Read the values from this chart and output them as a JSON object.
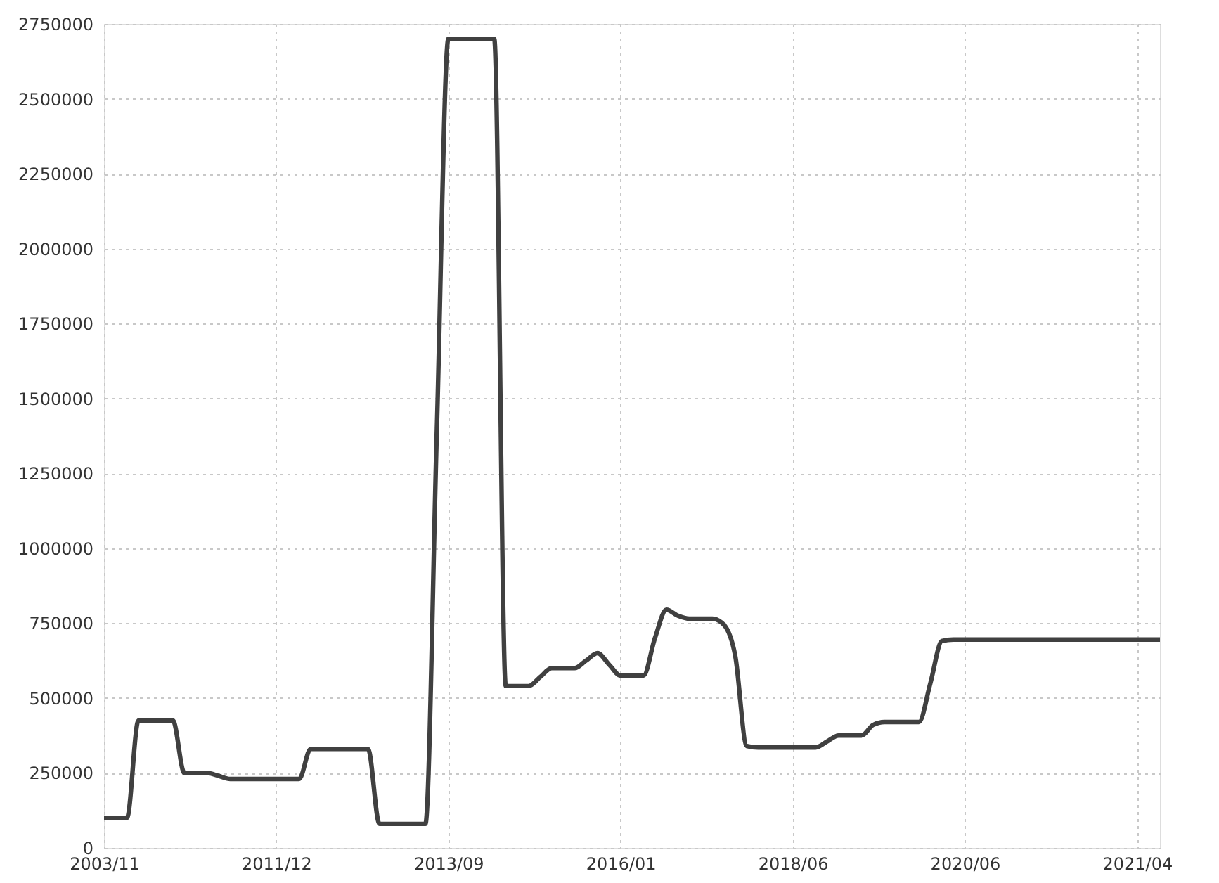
{
  "chart_data": {
    "type": "line",
    "categories": [
      "2003/11",
      null,
      null,
      null,
      null,
      null,
      null,
      null,
      null,
      null,
      null,
      null,
      null,
      null,
      null,
      "2011/12",
      null,
      null,
      null,
      null,
      null,
      null,
      null,
      null,
      null,
      null,
      null,
      null,
      null,
      null,
      "2013/09",
      null,
      null,
      null,
      null,
      null,
      null,
      null,
      null,
      null,
      null,
      null,
      null,
      null,
      null,
      "2016/01",
      null,
      null,
      null,
      null,
      null,
      null,
      null,
      null,
      null,
      null,
      null,
      null,
      null,
      null,
      "2018/06",
      null,
      null,
      null,
      null,
      null,
      null,
      null,
      null,
      null,
      null,
      null,
      null,
      null,
      null,
      "2020/06",
      null,
      null,
      null,
      null,
      null,
      null,
      null,
      null,
      null,
      null,
      null,
      null,
      null,
      null,
      "2021/04",
      null,
      null
    ],
    "values": [
      100000,
      100000,
      100000,
      425000,
      425000,
      425000,
      425000,
      250000,
      250000,
      250000,
      240000,
      230000,
      230000,
      230000,
      230000,
      230000,
      230000,
      230000,
      330000,
      330000,
      330000,
      330000,
      330000,
      330000,
      80000,
      80000,
      80000,
      80000,
      80000,
      1400000,
      2700000,
      2700000,
      2700000,
      2700000,
      2700000,
      540000,
      540000,
      540000,
      570000,
      600000,
      600000,
      600000,
      625000,
      650000,
      612000,
      575000,
      575000,
      575000,
      700000,
      795000,
      775000,
      765000,
      765000,
      765000,
      745000,
      640000,
      340000,
      335000,
      335000,
      335000,
      335000,
      335000,
      335000,
      355000,
      375000,
      375000,
      375000,
      410000,
      420000,
      420000,
      420000,
      420000,
      550000,
      690000,
      695000,
      695000,
      695000,
      695000,
      695000,
      695000,
      695000,
      695000,
      695000,
      695000,
      695000,
      695000,
      695000,
      695000,
      695000,
      695000,
      695000,
      695000,
      695000
    ],
    "color": "#404040",
    "ylim": [
      0,
      2750000
    ],
    "yticks": [
      0,
      250000,
      500000,
      750000,
      1000000,
      1250000,
      1500000,
      1750000,
      2000000,
      2250000,
      2500000,
      2750000
    ],
    "grid": true
  }
}
